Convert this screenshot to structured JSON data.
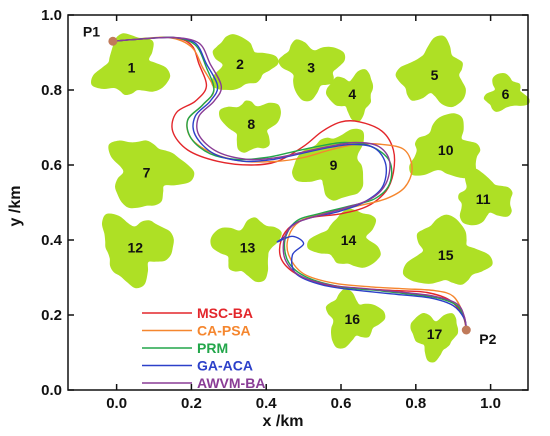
{
  "chart_data": {
    "type": "line",
    "xlabel": "x /km",
    "ylabel": "y /km",
    "xlim": [
      -0.13,
      1.1
    ],
    "ylim": [
      0.0,
      1.0
    ],
    "x_ticks": [
      "0.0",
      "0.2",
      "0.4",
      "0.6",
      "0.8",
      "1.0"
    ],
    "y_ticks": [
      "0.0",
      "0.2",
      "0.4",
      "0.6",
      "0.8",
      "1.0"
    ],
    "grid": false,
    "legend_position": "bottom-left",
    "colors": {
      "obstacle": "#aee025",
      "point": "#c07a5a",
      "axis": "#111111"
    },
    "points": [
      {
        "label": "P1",
        "x": -0.01,
        "y": 0.93
      },
      {
        "label": "P2",
        "x": 0.935,
        "y": 0.16
      }
    ],
    "obstacles": [
      {
        "label": "1",
        "x": 0.04,
        "y": 0.86,
        "r": 0.085
      },
      {
        "label": "2",
        "x": 0.33,
        "y": 0.87,
        "r": 0.075
      },
      {
        "label": "3",
        "x": 0.52,
        "y": 0.86,
        "r": 0.075
      },
      {
        "label": "4",
        "x": 0.63,
        "y": 0.79,
        "r": 0.06
      },
      {
        "label": "5",
        "x": 0.85,
        "y": 0.84,
        "r": 0.085
      },
      {
        "label": "6",
        "x": 1.04,
        "y": 0.79,
        "r": 0.05
      },
      {
        "label": "7",
        "x": 0.08,
        "y": 0.58,
        "r": 0.095
      },
      {
        "label": "8",
        "x": 0.36,
        "y": 0.71,
        "r": 0.07
      },
      {
        "label": "9",
        "x": 0.58,
        "y": 0.6,
        "r": 0.09
      },
      {
        "label": "10",
        "x": 0.88,
        "y": 0.64,
        "r": 0.085
      },
      {
        "label": "11",
        "x": 0.98,
        "y": 0.51,
        "r": 0.07
      },
      {
        "label": "12",
        "x": 0.05,
        "y": 0.38,
        "r": 0.09
      },
      {
        "label": "13",
        "x": 0.35,
        "y": 0.38,
        "r": 0.08
      },
      {
        "label": "14",
        "x": 0.62,
        "y": 0.4,
        "r": 0.08
      },
      {
        "label": "15",
        "x": 0.88,
        "y": 0.36,
        "r": 0.095
      },
      {
        "label": "16",
        "x": 0.63,
        "y": 0.19,
        "r": 0.07
      },
      {
        "label": "17",
        "x": 0.85,
        "y": 0.15,
        "r": 0.06
      }
    ],
    "series": [
      {
        "name": "MSC-BA",
        "color": "#e3262b",
        "x": [
          -0.01,
          0.05,
          0.15,
          0.2,
          0.22,
          0.24,
          0.21,
          0.16,
          0.15,
          0.19,
          0.27,
          0.36,
          0.43,
          0.5,
          0.55,
          0.6,
          0.65,
          0.71,
          0.74,
          0.74,
          0.72,
          0.67,
          0.6,
          0.52,
          0.47,
          0.44,
          0.44,
          0.48,
          0.56,
          0.66,
          0.75,
          0.83,
          0.89,
          0.925,
          0.935
        ],
        "y": [
          0.93,
          0.935,
          0.94,
          0.92,
          0.87,
          0.81,
          0.77,
          0.74,
          0.69,
          0.64,
          0.61,
          0.6,
          0.61,
          0.65,
          0.69,
          0.715,
          0.715,
          0.69,
          0.64,
          0.58,
          0.53,
          0.49,
          0.47,
          0.46,
          0.44,
          0.4,
          0.35,
          0.31,
          0.28,
          0.27,
          0.265,
          0.26,
          0.24,
          0.2,
          0.16
        ]
      },
      {
        "name": "CA-PSA",
        "color": "#f5862e",
        "x": [
          -0.01,
          0.05,
          0.14,
          0.2,
          0.23,
          0.26,
          0.23,
          0.19,
          0.2,
          0.26,
          0.34,
          0.43,
          0.5,
          0.57,
          0.64,
          0.71,
          0.77,
          0.79,
          0.77,
          0.72,
          0.64,
          0.55,
          0.49,
          0.46,
          0.46,
          0.5,
          0.58,
          0.68,
          0.77,
          0.85,
          0.9,
          0.928,
          0.935
        ],
        "y": [
          0.93,
          0.935,
          0.94,
          0.915,
          0.86,
          0.8,
          0.76,
          0.72,
          0.67,
          0.63,
          0.61,
          0.61,
          0.62,
          0.64,
          0.655,
          0.655,
          0.64,
          0.59,
          0.54,
          0.51,
          0.49,
          0.47,
          0.45,
          0.41,
          0.36,
          0.31,
          0.285,
          0.275,
          0.27,
          0.265,
          0.25,
          0.2,
          0.16
        ]
      },
      {
        "name": "PRM",
        "color": "#22a64a",
        "x": [
          -0.01,
          0.05,
          0.15,
          0.21,
          0.24,
          0.26,
          0.23,
          0.19,
          0.2,
          0.25,
          0.32,
          0.4,
          0.47,
          0.54,
          0.61,
          0.68,
          0.73,
          0.73,
          0.69,
          0.62,
          0.54,
          0.48,
          0.45,
          0.46,
          0.51,
          0.6,
          0.7,
          0.79,
          0.86,
          0.91,
          0.93,
          0.935
        ],
        "y": [
          0.93,
          0.935,
          0.94,
          0.92,
          0.86,
          0.8,
          0.76,
          0.72,
          0.67,
          0.63,
          0.615,
          0.62,
          0.635,
          0.65,
          0.66,
          0.65,
          0.61,
          0.55,
          0.51,
          0.49,
          0.47,
          0.45,
          0.4,
          0.34,
          0.3,
          0.275,
          0.265,
          0.255,
          0.245,
          0.225,
          0.19,
          0.16
        ]
      },
      {
        "name": "GA-ACA",
        "color": "#2c40c9",
        "x": [
          -0.01,
          0.05,
          0.15,
          0.21,
          0.24,
          0.27,
          0.25,
          0.21,
          0.21,
          0.26,
          0.34,
          0.42,
          0.49,
          0.56,
          0.63,
          0.69,
          0.72,
          0.71,
          0.66,
          0.59,
          0.52,
          0.47,
          0.45,
          0.43,
          0.47,
          0.5,
          0.47,
          0.48,
          0.55,
          0.65,
          0.75,
          0.84,
          0.9,
          0.93,
          0.935
        ],
        "y": [
          0.93,
          0.935,
          0.94,
          0.925,
          0.87,
          0.81,
          0.77,
          0.73,
          0.68,
          0.63,
          0.61,
          0.615,
          0.63,
          0.645,
          0.655,
          0.645,
          0.6,
          0.54,
          0.5,
          0.475,
          0.46,
          0.44,
          0.41,
          0.395,
          0.41,
          0.39,
          0.36,
          0.31,
          0.28,
          0.265,
          0.255,
          0.245,
          0.225,
          0.19,
          0.16
        ]
      },
      {
        "name": "AWVM-BA",
        "color": "#8a3d96",
        "x": [
          -0.01,
          0.05,
          0.15,
          0.22,
          0.25,
          0.28,
          0.26,
          0.22,
          0.22,
          0.27,
          0.35,
          0.43,
          0.5,
          0.57,
          0.64,
          0.7,
          0.73,
          0.72,
          0.68,
          0.61,
          0.54,
          0.48,
          0.45,
          0.45,
          0.49,
          0.57,
          0.67,
          0.77,
          0.85,
          0.91,
          0.93,
          0.935
        ],
        "y": [
          0.93,
          0.935,
          0.94,
          0.925,
          0.87,
          0.81,
          0.77,
          0.73,
          0.68,
          0.635,
          0.615,
          0.62,
          0.635,
          0.65,
          0.66,
          0.65,
          0.61,
          0.55,
          0.51,
          0.485,
          0.465,
          0.445,
          0.41,
          0.35,
          0.305,
          0.28,
          0.27,
          0.26,
          0.25,
          0.23,
          0.195,
          0.16
        ]
      }
    ]
  }
}
